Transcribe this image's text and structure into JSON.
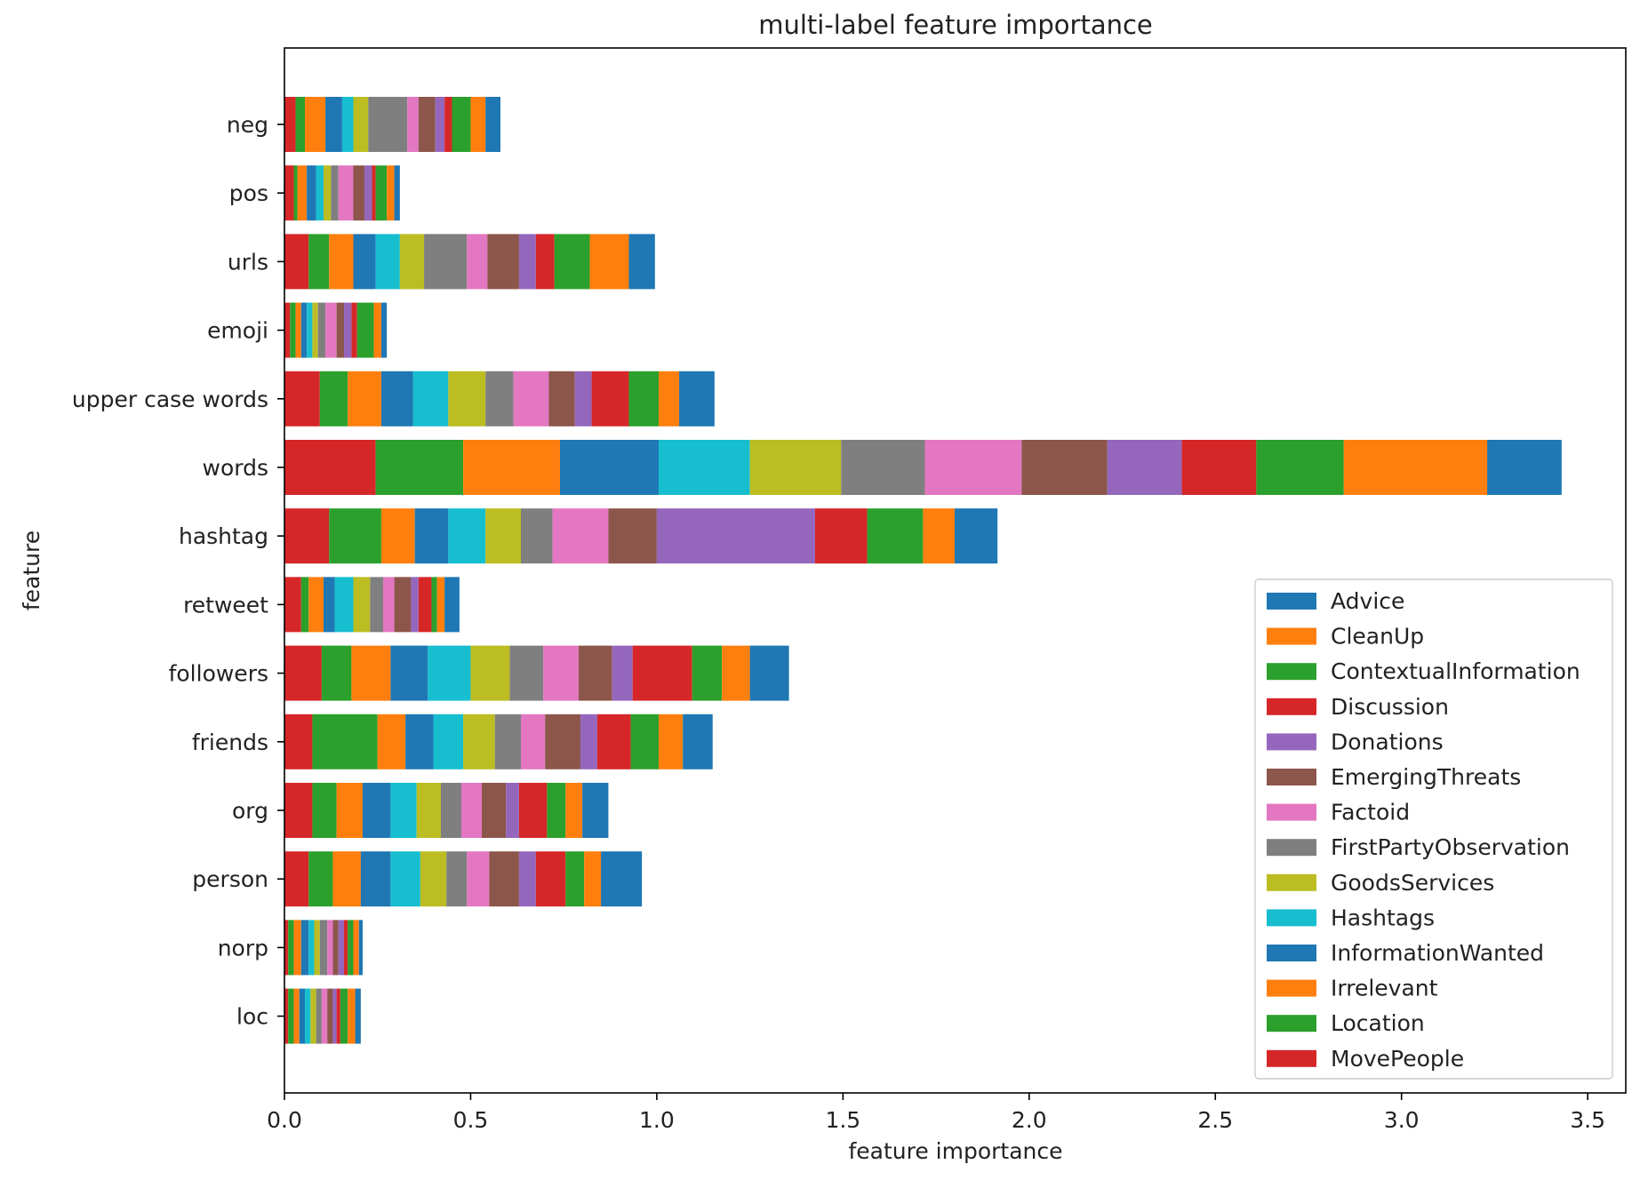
{
  "chart_data": {
    "type": "bar",
    "orientation": "horizontal",
    "stacked": true,
    "title": "multi-label feature importance",
    "xlabel": "feature importance",
    "ylabel": "feature",
    "xlim": [
      0,
      3.6
    ],
    "xticks": [
      0.0,
      0.5,
      1.0,
      1.5,
      2.0,
      2.5,
      3.0,
      3.5
    ],
    "xtick_labels": [
      "0.0",
      "0.5",
      "1.0",
      "1.5",
      "2.0",
      "2.5",
      "3.0",
      "3.5"
    ],
    "grid": false,
    "legend_position": "lower-right",
    "categories": [
      "neg",
      "pos",
      "urls",
      "emoji",
      "upper case words",
      "words",
      "hashtag",
      "retweet",
      "followers",
      "friends",
      "org",
      "person",
      "norp",
      "loc"
    ],
    "series": [
      {
        "name": "MovePeople",
        "color": "#d62728",
        "values": [
          0.03,
          0.025,
          0.065,
          0.015,
          0.095,
          0.245,
          0.12,
          0.045,
          0.1,
          0.075,
          0.075,
          0.065,
          0.01,
          0.01
        ]
      },
      {
        "name": "Location",
        "color": "#2ca02c",
        "values": [
          0.025,
          0.01,
          0.055,
          0.015,
          0.075,
          0.235,
          0.14,
          0.02,
          0.08,
          0.175,
          0.065,
          0.065,
          0.015,
          0.015
        ]
      },
      {
        "name": "Irrelevant",
        "color": "#ff7f0e",
        "values": [
          0.055,
          0.025,
          0.065,
          0.015,
          0.09,
          0.26,
          0.09,
          0.04,
          0.105,
          0.075,
          0.07,
          0.075,
          0.02,
          0.015
        ]
      },
      {
        "name": "InformationWanted",
        "color": "#1f77b4",
        "values": [
          0.045,
          0.025,
          0.06,
          0.015,
          0.085,
          0.265,
          0.09,
          0.03,
          0.1,
          0.075,
          0.075,
          0.08,
          0.02,
          0.015
        ]
      },
      {
        "name": "Hashtags",
        "color": "#17becf",
        "values": [
          0.03,
          0.02,
          0.065,
          0.015,
          0.095,
          0.245,
          0.1,
          0.05,
          0.115,
          0.08,
          0.07,
          0.08,
          0.015,
          0.015
        ]
      },
      {
        "name": "GoodsServices",
        "color": "#bcbd22",
        "values": [
          0.04,
          0.02,
          0.065,
          0.015,
          0.1,
          0.245,
          0.095,
          0.045,
          0.105,
          0.085,
          0.065,
          0.07,
          0.015,
          0.015
        ]
      },
      {
        "name": "FirstPartyObservation",
        "color": "#7f7f7f",
        "values": [
          0.105,
          0.02,
          0.115,
          0.02,
          0.075,
          0.225,
          0.085,
          0.035,
          0.09,
          0.07,
          0.055,
          0.055,
          0.02,
          0.015
        ]
      },
      {
        "name": "Factoid",
        "color": "#e377c2",
        "values": [
          0.03,
          0.04,
          0.055,
          0.03,
          0.095,
          0.26,
          0.15,
          0.03,
          0.095,
          0.065,
          0.055,
          0.06,
          0.015,
          0.015
        ]
      },
      {
        "name": "EmergingThreats",
        "color": "#8c564b",
        "values": [
          0.045,
          0.03,
          0.085,
          0.02,
          0.07,
          0.23,
          0.13,
          0.045,
          0.09,
          0.095,
          0.065,
          0.08,
          0.015,
          0.015
        ]
      },
      {
        "name": "Donations",
        "color": "#9467bd",
        "values": [
          0.025,
          0.02,
          0.045,
          0.02,
          0.045,
          0.2,
          0.425,
          0.02,
          0.055,
          0.045,
          0.035,
          0.045,
          0.015,
          0.01
        ]
      },
      {
        "name": "Discussion",
        "color": "#d62728",
        "values": [
          0.02,
          0.01,
          0.05,
          0.015,
          0.1,
          0.2,
          0.14,
          0.035,
          0.16,
          0.09,
          0.075,
          0.08,
          0.01,
          0.01
        ]
      },
      {
        "name": "ContextualInformation",
        "color": "#2ca02c",
        "values": [
          0.05,
          0.03,
          0.095,
          0.045,
          0.08,
          0.235,
          0.15,
          0.015,
          0.08,
          0.075,
          0.05,
          0.05,
          0.015,
          0.02
        ]
      },
      {
        "name": "CleanUp",
        "color": "#ff7f0e",
        "values": [
          0.04,
          0.02,
          0.105,
          0.02,
          0.055,
          0.385,
          0.085,
          0.02,
          0.075,
          0.065,
          0.045,
          0.045,
          0.015,
          0.02
        ]
      },
      {
        "name": "Advice",
        "color": "#1f77b4",
        "values": [
          0.04,
          0.015,
          0.07,
          0.015,
          0.095,
          0.2,
          0.115,
          0.04,
          0.105,
          0.08,
          0.07,
          0.11,
          0.01,
          0.015
        ]
      }
    ],
    "legend_order": [
      "Advice",
      "CleanUp",
      "ContextualInformation",
      "Discussion",
      "Donations",
      "EmergingThreats",
      "Factoid",
      "FirstPartyObservation",
      "GoodsServices",
      "Hashtags",
      "InformationWanted",
      "Irrelevant",
      "Location",
      "MovePeople"
    ]
  }
}
